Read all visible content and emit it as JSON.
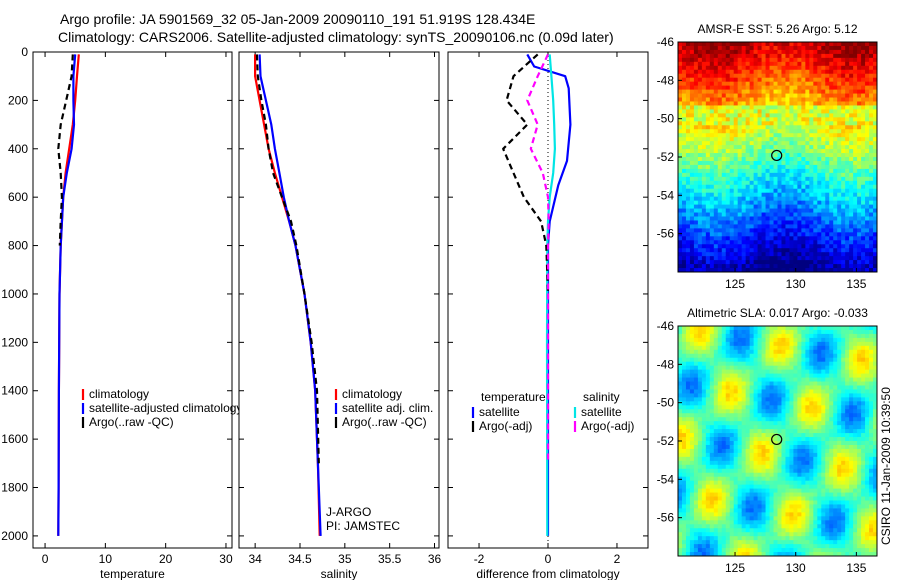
{
  "header": {
    "line1": "Argo profile: JA 5901569_32 05-Jan-2009 20090110_191 51.919S 128.434E",
    "line2": "Climatology: CARS2006. Satellite-adjusted climatology: synTS_20090106.nc (0.09d later)"
  },
  "colors": {
    "climatology": "#ff0000",
    "satellite": "#0000ff",
    "argo": "#000000",
    "salinity_sat": "#00e5e5",
    "salinity_argo": "#ff00ff"
  },
  "footer_stamp": "CSIRO 11-Jan-2009 10:39:50",
  "chart_data": [
    {
      "id": "temperature",
      "type": "line",
      "xlabel": "temperature",
      "xlim": [
        -2,
        31
      ],
      "ylim": [
        2050,
        0
      ],
      "xticks": [
        0,
        10,
        20,
        30
      ],
      "yticks": [
        0,
        200,
        400,
        600,
        800,
        1000,
        1200,
        1400,
        1600,
        1800,
        2000
      ],
      "legend": [
        "climatology",
        "satellite-adjusted climatology",
        "Argo(..raw -QC)"
      ],
      "series": [
        {
          "name": "climatology",
          "color": "#ff0000",
          "dash": "",
          "x": [
            5.6,
            5.3,
            5.0,
            4.6,
            4.0,
            3.4,
            3.0,
            2.6,
            2.4,
            2.3,
            2.25,
            2.2
          ],
          "y": [
            10,
            100,
            200,
            300,
            400,
            500,
            600,
            800,
            1000,
            1400,
            1800,
            2000
          ]
        },
        {
          "name": "satellite-adjusted climatology",
          "color": "#0000ff",
          "dash": "",
          "x": [
            5.0,
            4.7,
            4.7,
            4.8,
            4.4,
            3.6,
            3.0,
            2.6,
            2.4,
            2.3,
            2.25,
            2.2
          ],
          "y": [
            10,
            100,
            200,
            300,
            400,
            500,
            600,
            800,
            1000,
            1400,
            1800,
            2000
          ]
        },
        {
          "name": "Argo(..raw -QC)",
          "color": "#000000",
          "dash": "6,4",
          "x": [
            4.6,
            4.4,
            3.5,
            2.6,
            2.2,
            2.6,
            2.8,
            2.6,
            2.45
          ],
          "y": [
            10,
            100,
            200,
            300,
            400,
            500,
            600,
            700,
            800
          ]
        }
      ]
    },
    {
      "id": "salinity",
      "type": "line",
      "xlabel": "salinity",
      "xlim": [
        33.82,
        36.05
      ],
      "ylim": [
        2050,
        0
      ],
      "xticks": [
        34,
        34.5,
        35,
        35.5,
        36
      ],
      "yticks": [
        0,
        200,
        400,
        600,
        800,
        1000,
        1200,
        1400,
        1600,
        1800,
        2000
      ],
      "legend": [
        "climatology",
        "satellite adj. clim.",
        "Argo(..raw -QC)"
      ],
      "annotations": [
        "J-ARGO",
        "PI: JAMSTEC"
      ],
      "series": [
        {
          "name": "climatology",
          "color": "#ff0000",
          "dash": "",
          "x": [
            34.0,
            34.0,
            34.05,
            34.1,
            34.15,
            34.22,
            34.3,
            34.38,
            34.45,
            34.55,
            34.62,
            34.67,
            34.7,
            34.72
          ],
          "y": [
            10,
            100,
            200,
            300,
            400,
            500,
            600,
            700,
            800,
            1000,
            1200,
            1400,
            1700,
            2000
          ]
        },
        {
          "name": "satellite adj. clim.",
          "color": "#0000ff",
          "dash": "",
          "x": [
            34.05,
            34.06,
            34.12,
            34.18,
            34.22,
            34.27,
            34.32,
            34.38,
            34.45,
            34.55,
            34.62,
            34.67,
            34.7,
            34.73
          ],
          "y": [
            10,
            100,
            200,
            300,
            400,
            500,
            600,
            700,
            800,
            1000,
            1200,
            1400,
            1700,
            2000
          ]
        },
        {
          "name": "Argo(..raw -QC)",
          "color": "#000000",
          "dash": "6,4",
          "x": [
            34.02,
            34.03,
            34.07,
            34.12,
            34.15,
            34.2,
            34.3,
            34.4,
            34.46,
            34.55,
            34.63,
            34.69,
            34.71
          ],
          "y": [
            10,
            100,
            200,
            300,
            400,
            500,
            600,
            700,
            800,
            1000,
            1200,
            1400,
            1700
          ]
        }
      ]
    },
    {
      "id": "difference",
      "type": "line",
      "xlabel": "difference from climatology",
      "xlim": [
        -2.9,
        2.9
      ],
      "ylim": [
        2050,
        0
      ],
      "xticks": [
        -2,
        0,
        2
      ],
      "yticks": [
        0,
        200,
        400,
        600,
        800,
        1000,
        1200,
        1400,
        1600,
        1800,
        2000
      ],
      "legend_headers": [
        "temperature",
        "salinity"
      ],
      "legend": [
        "satellite",
        "Argo(-adj)",
        "satellite",
        "Argo(-adj)"
      ],
      "series": [
        {
          "name": "temperature satellite",
          "color": "#0000ff",
          "dash": "",
          "x": [
            -0.6,
            -0.4,
            0.5,
            0.6,
            0.65,
            0.55,
            0.3,
            0.05,
            0.0,
            0.0,
            0.0
          ],
          "y": [
            10,
            60,
            100,
            150,
            300,
            450,
            550,
            700,
            800,
            1200,
            2000
          ]
        },
        {
          "name": "salinity satellite",
          "color": "#00e5e5",
          "dash": "",
          "x": [
            0.05,
            0.1,
            0.15,
            0.18,
            0.2,
            0.15,
            0.05,
            0.0,
            -0.02,
            -0.03,
            -0.02
          ],
          "y": [
            10,
            100,
            200,
            300,
            400,
            500,
            600,
            700,
            800,
            1200,
            2000
          ]
        },
        {
          "name": "temperature Argo(-adj)",
          "color": "#000000",
          "dash": "6,4",
          "x": [
            -0.3,
            -1.0,
            -1.2,
            -0.6,
            -1.3,
            -1.0,
            -0.7,
            -0.2,
            -0.05,
            0.0
          ],
          "y": [
            10,
            100,
            200,
            300,
            400,
            500,
            600,
            700,
            800,
            1000
          ]
        },
        {
          "name": "salinity Argo(-adj)",
          "color": "#ff00ff",
          "dash": "6,4",
          "x": [
            0.0,
            -0.3,
            -0.6,
            -0.3,
            -0.5,
            -0.15,
            0.0,
            0.02,
            0.0,
            0.0
          ],
          "y": [
            10,
            100,
            200,
            300,
            400,
            500,
            600,
            700,
            800,
            1700
          ]
        }
      ]
    },
    {
      "id": "sst_map",
      "type": "heatmap",
      "title": "AMSR-E SST: 5.26 Argo: 5.12",
      "xlim": [
        120.3,
        136.7
      ],
      "ylim": [
        -58,
        -46
      ],
      "xticks": [
        125,
        130,
        135
      ],
      "yticks": [
        -46,
        -48,
        -50,
        -52,
        -54,
        -56
      ],
      "marker": {
        "lon": 128.434,
        "lat": -51.919
      }
    },
    {
      "id": "sla_map",
      "type": "heatmap",
      "title": "Altimetric SLA: 0.017 Argo: -0.033",
      "xlim": [
        120.3,
        136.7
      ],
      "ylim": [
        -58,
        -46
      ],
      "xticks": [
        125,
        130,
        135
      ],
      "yticks": [
        -46,
        -48,
        -50,
        -52,
        -54,
        -56
      ],
      "marker": {
        "lon": 128.434,
        "lat": -51.919
      }
    }
  ]
}
